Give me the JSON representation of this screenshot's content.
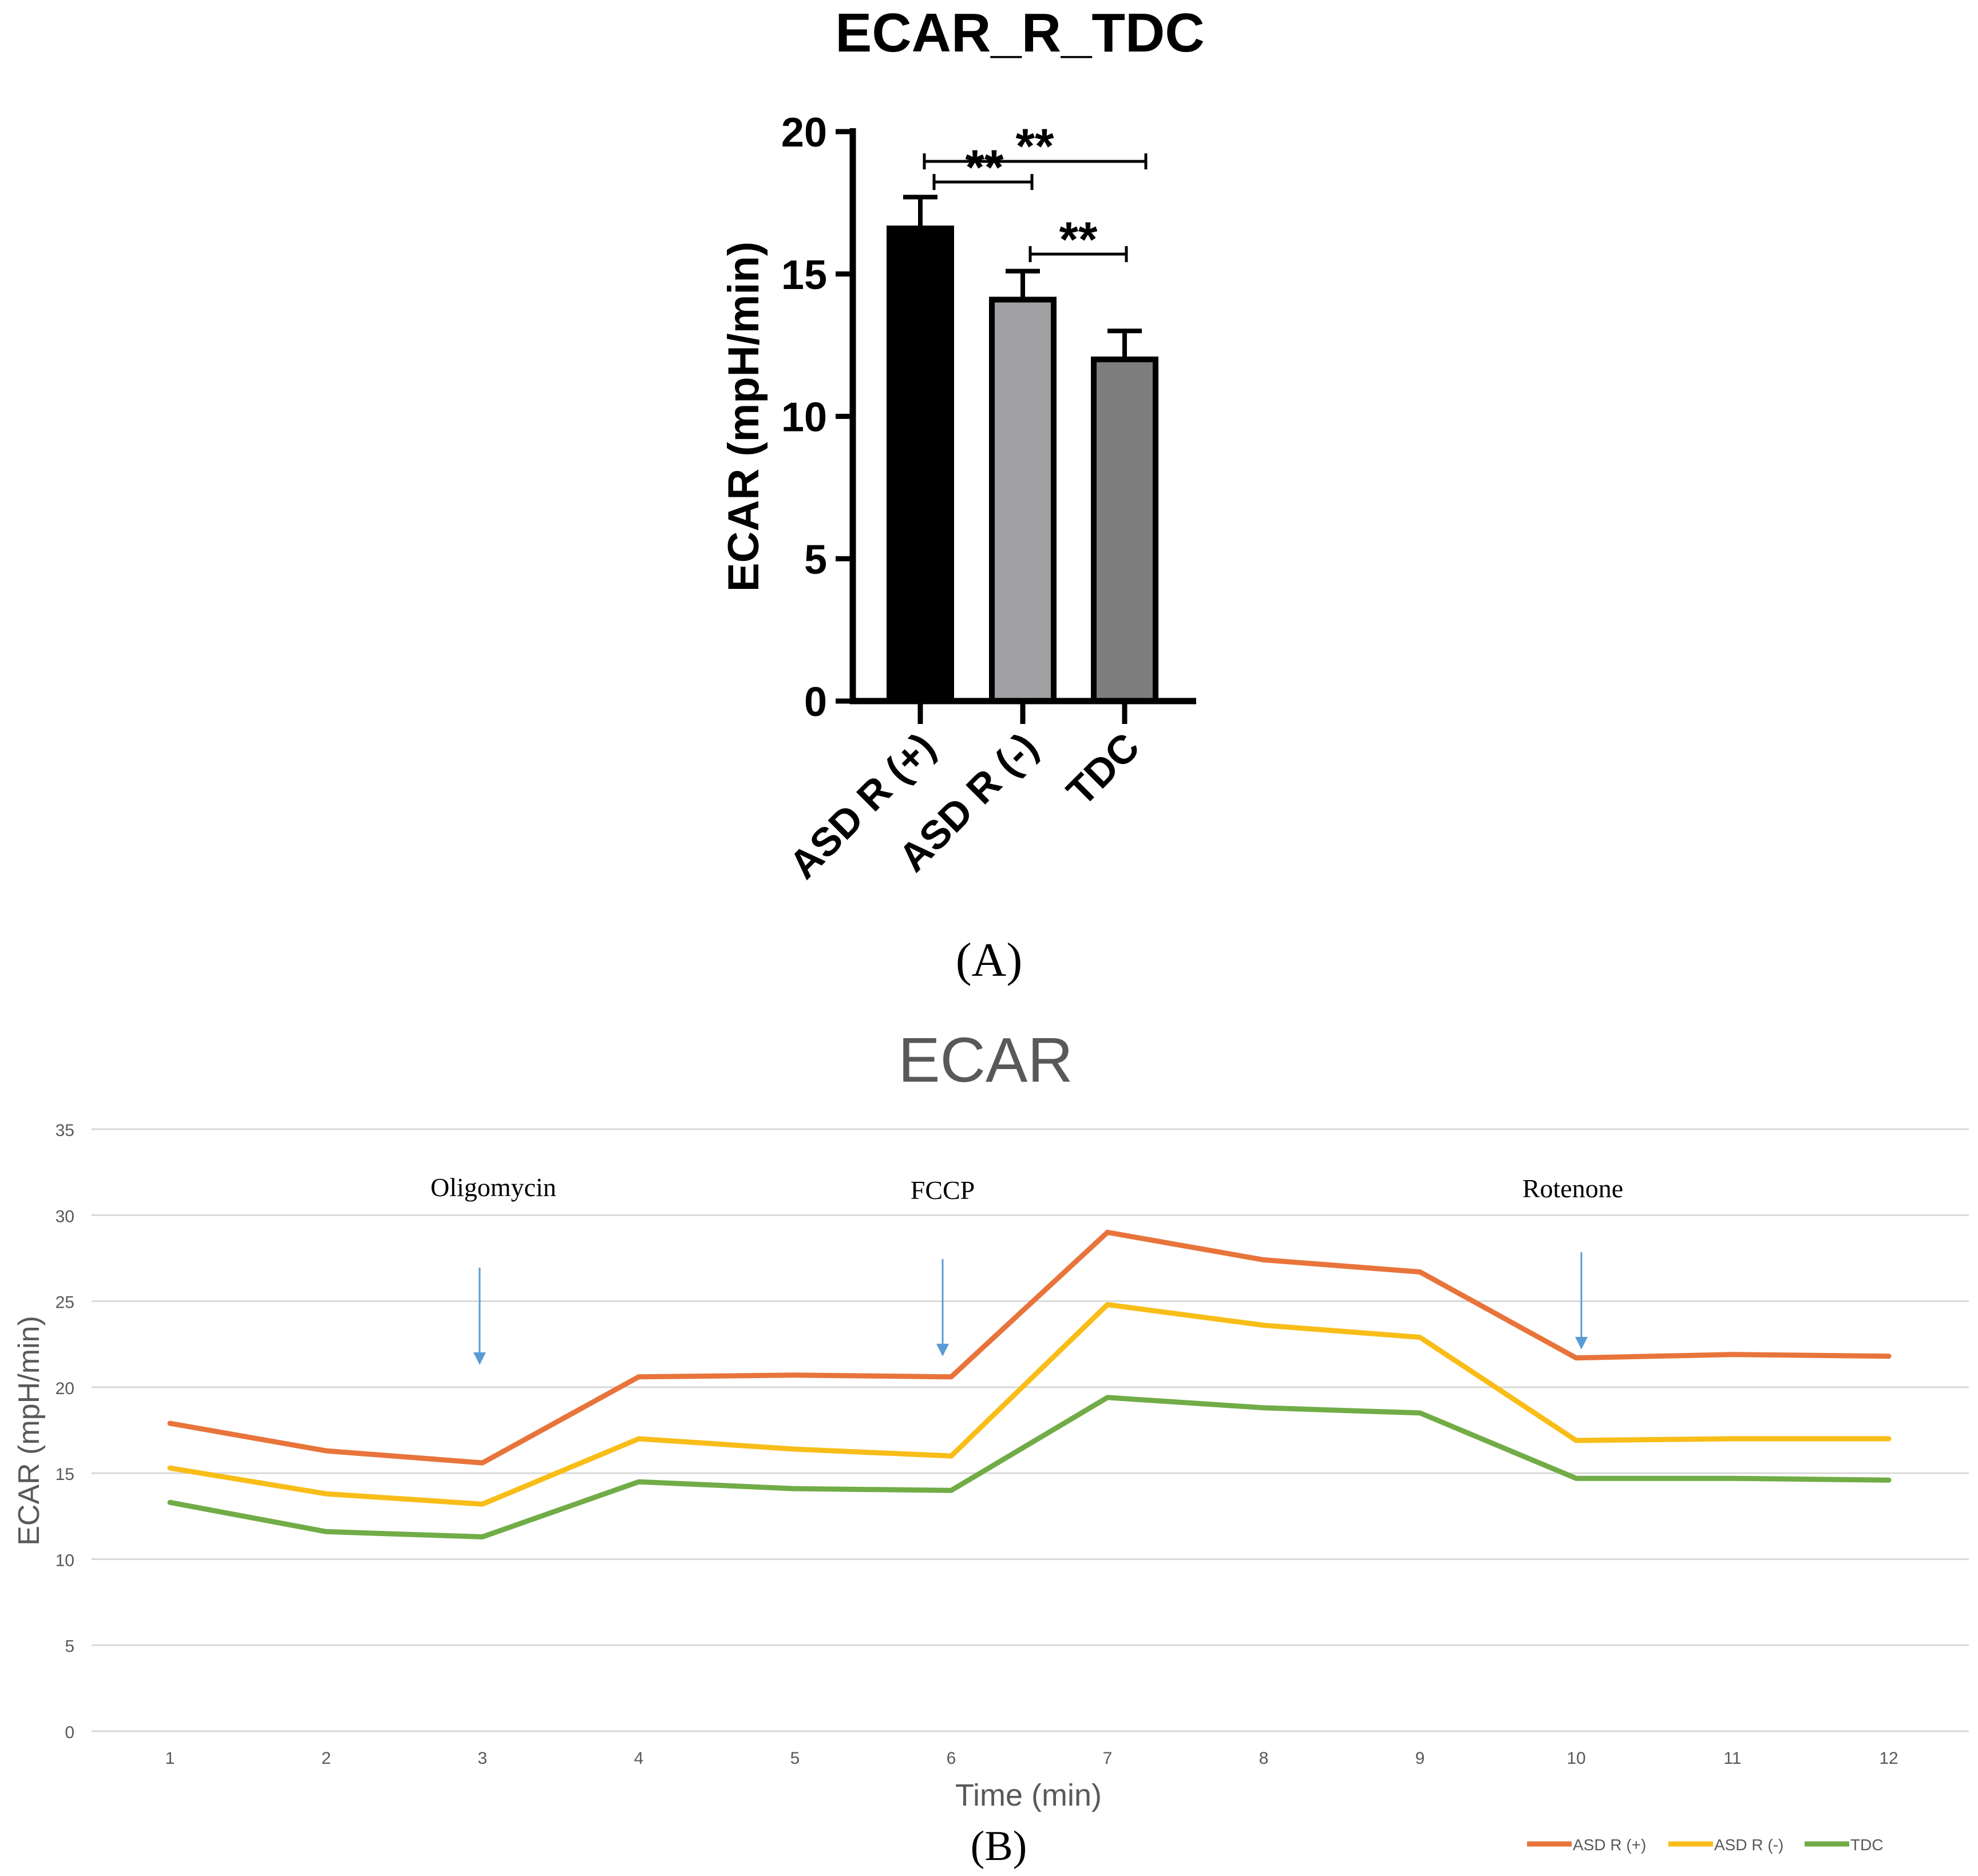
{
  "colors": {
    "bar_a": "#000000",
    "bar_b": "#a0a0a3",
    "bar_c": "#7d7d7d",
    "asd_r_pos": "#e8743b",
    "asd_r_neg": "#f9bd18",
    "tdc": "#71ac47",
    "arrow": "#5b9bd5",
    "grid": "#d9d9d9",
    "tick_text": "#595959"
  },
  "panel_a": {
    "caption": "(A)",
    "chart_data": {
      "type": "bar",
      "title": "ECAR_R_TDC",
      "xlabel": "",
      "ylabel": "ECAR (mpH/min)",
      "ylim": [
        0,
        20
      ],
      "yticks": [
        0,
        5,
        10,
        15,
        20
      ],
      "categories": [
        "ASD R (+)",
        "ASD R (-)",
        "TDC"
      ],
      "values": [
        16.6,
        14.1,
        12.0
      ],
      "error": [
        1.1,
        1.0,
        1.0
      ],
      "significance": [
        {
          "groups": [
            0,
            1
          ],
          "label": "**"
        },
        {
          "groups": [
            0,
            2
          ],
          "label": "**"
        },
        {
          "groups": [
            1,
            2
          ],
          "label": "**"
        }
      ]
    }
  },
  "panel_b": {
    "caption": "(B)",
    "chart_data": {
      "type": "line",
      "title": "ECAR",
      "xlabel": "Time (min)",
      "ylabel": "ECAR (mpH/min)",
      "ylim": [
        0,
        35
      ],
      "yticks": [
        0,
        5,
        10,
        15,
        20,
        25,
        30,
        35
      ],
      "x": [
        1,
        2,
        3,
        4,
        5,
        6,
        7,
        8,
        9,
        10,
        11,
        12
      ],
      "grid": true,
      "legend": "bottom-right",
      "series": [
        {
          "name": "ASD R (+)",
          "values": [
            17.9,
            16.3,
            15.6,
            20.6,
            20.7,
            20.6,
            29.0,
            27.4,
            26.7,
            21.7,
            21.9,
            21.8
          ]
        },
        {
          "name": "ASD R (-)",
          "values": [
            15.3,
            13.8,
            13.2,
            17.0,
            16.4,
            16.0,
            24.8,
            23.6,
            22.9,
            16.9,
            17.0,
            17.0
          ]
        },
        {
          "name": "TDC",
          "values": [
            13.3,
            11.6,
            11.3,
            14.5,
            14.1,
            14.0,
            19.4,
            18.8,
            18.5,
            14.7,
            14.7,
            14.6
          ]
        }
      ],
      "annotations": [
        {
          "text": "Oligomycin",
          "x": 3
        },
        {
          "text": "FCCP",
          "x": 6
        },
        {
          "text": "Rotenone",
          "x": 10
        }
      ]
    }
  }
}
